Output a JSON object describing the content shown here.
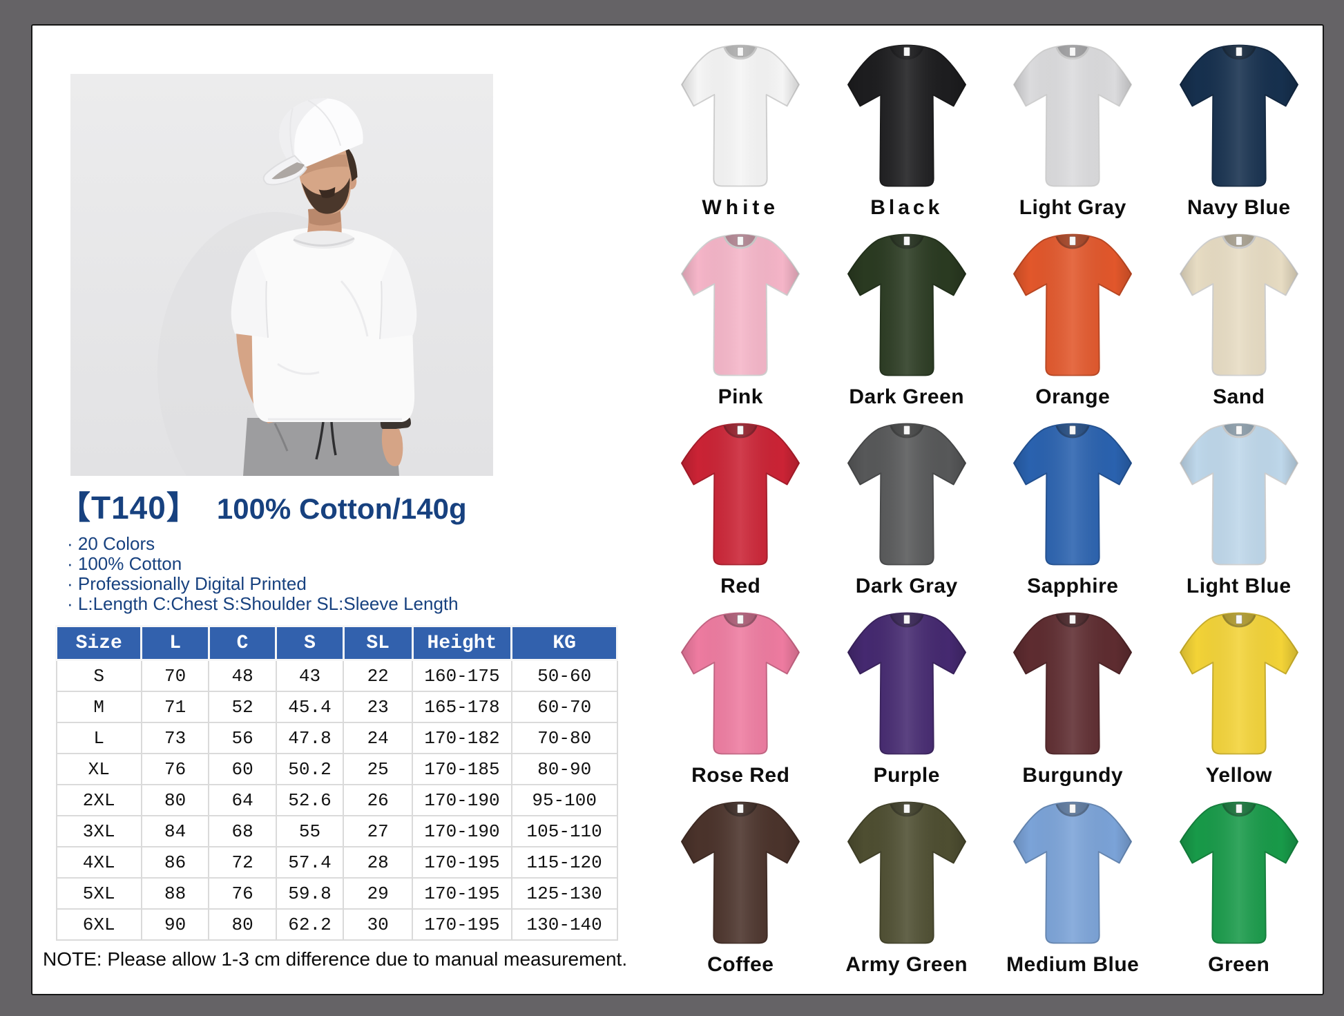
{
  "product": {
    "code": "【T140】",
    "title": "100% Cotton/140g",
    "features": [
      "· 20 Colors",
      "· 100% Cotton",
      "· Professionally Digital Printed",
      "· L:Length C:Chest S:Shoulder SL:Sleeve Length"
    ],
    "note": "NOTE:  Please allow 1-3 cm difference due to manual measurement."
  },
  "size_table": {
    "columns": [
      "Size",
      "L",
      "C",
      "S",
      "SL",
      "Height",
      "KG"
    ],
    "rows": [
      [
        "S",
        "70",
        "48",
        "43",
        "22",
        "160-175",
        "50-60"
      ],
      [
        "M",
        "71",
        "52",
        "45.4",
        "23",
        "165-178",
        "60-70"
      ],
      [
        "L",
        "73",
        "56",
        "47.8",
        "24",
        "170-182",
        "70-80"
      ],
      [
        "XL",
        "76",
        "60",
        "50.2",
        "25",
        "170-185",
        "80-90"
      ],
      [
        "2XL",
        "80",
        "64",
        "52.6",
        "26",
        "170-190",
        "95-100"
      ],
      [
        "3XL",
        "84",
        "68",
        "55",
        "27",
        "170-190",
        "105-110"
      ],
      [
        "4XL",
        "86",
        "72",
        "57.4",
        "28",
        "170-195",
        "115-120"
      ],
      [
        "5XL",
        "88",
        "76",
        "59.8",
        "29",
        "170-195",
        "125-130"
      ],
      [
        "6XL",
        "90",
        "80",
        "62.2",
        "30",
        "170-195",
        "130-140"
      ]
    ]
  },
  "colors": [
    {
      "name": "White",
      "hex": "#f5f5f5"
    },
    {
      "name": "Black",
      "hex": "#1d1d1f"
    },
    {
      "name": "Light Gray",
      "hex": "#dbdbdd"
    },
    {
      "name": "Navy Blue",
      "hex": "#16304e"
    },
    {
      "name": "Pink",
      "hex": "#f5b5c8"
    },
    {
      "name": "Dark Green",
      "hex": "#2a3a21"
    },
    {
      "name": "Orange",
      "hex": "#e2572b"
    },
    {
      "name": "Sand",
      "hex": "#e7dcc3"
    },
    {
      "name": "Red",
      "hex": "#cb2335"
    },
    {
      "name": "Dark Gray",
      "hex": "#575859"
    },
    {
      "name": "Sapphire",
      "hex": "#2a62af"
    },
    {
      "name": "Light Blue",
      "hex": "#bed7ea"
    },
    {
      "name": "Rose Red",
      "hex": "#ee7ba0"
    },
    {
      "name": "Purple",
      "hex": "#452970"
    },
    {
      "name": "Burgundy",
      "hex": "#5e2c30"
    },
    {
      "name": "Yellow",
      "hex": "#f3d337"
    },
    {
      "name": "Coffee",
      "hex": "#4b332b"
    },
    {
      "name": "Army Green",
      "hex": "#4e4e31"
    },
    {
      "name": "Medium Blue",
      "hex": "#7ba3d8"
    },
    {
      "name": "Green",
      "hex": "#189a49"
    }
  ],
  "theme": {
    "accent_text": "#17417f",
    "table_header_bg": "#3261ad",
    "frame": "#656366",
    "photo_bg": "#e8e8e9"
  }
}
